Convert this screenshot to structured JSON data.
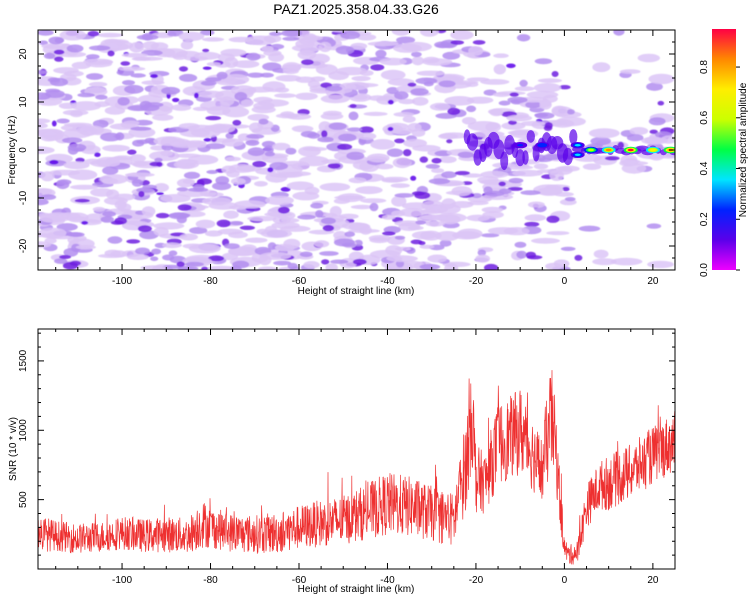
{
  "figure_title": "PAZ1.2025.358.04.33.G26",
  "colors": {
    "line": "#ee3030",
    "frame": "#000000",
    "speckle_light": "#dcc6f7",
    "speckle_mid": "#b38ef0",
    "speckle_dark": "#6f1fe0",
    "speckle_core": "#5a00ea"
  },
  "colorbar": {
    "label": "Normalized spectral amplitude",
    "ticks": [
      "0.0",
      "0.2",
      "0.4",
      "0.6",
      "0.8"
    ],
    "tick_values": [
      0.0,
      0.2,
      0.4,
      0.6,
      0.8
    ],
    "range": [
      0,
      0.95
    ],
    "colormap": [
      "#ee00ff",
      "#5a00ea",
      "#0022ff",
      "#00e5ff",
      "#00ff44",
      "#ccff00",
      "#ffee00",
      "#ff8800",
      "#ff0044"
    ]
  },
  "chart_data": [
    {
      "type": "heatmap",
      "title": "PAZ1.2025.358.04.33.G26",
      "xlabel": "Height of straight line (km)",
      "ylabel": "Frequency (Hz)",
      "xlim": [
        -119,
        25
      ],
      "ylim": [
        -25,
        25
      ],
      "xticks": [
        -100,
        -80,
        -60,
        -40,
        -20,
        0,
        20
      ],
      "yticks": [
        -20,
        -10,
        0,
        10,
        20
      ],
      "xtick_labels": [
        "-100",
        "-80",
        "-60",
        "-40",
        "-20",
        "0",
        "20"
      ],
      "ytick_labels": [
        "-20",
        "-10",
        "0",
        "10",
        "20"
      ],
      "description_points": [
        {
          "x": 6,
          "y": 0,
          "amplitude": 0.55
        },
        {
          "x": 10,
          "y": 0,
          "amplitude": 0.8
        },
        {
          "x": 15,
          "y": 0,
          "amplitude": 0.9
        },
        {
          "x": 20,
          "y": 0,
          "amplitude": 0.75
        },
        {
          "x": 24,
          "y": 0,
          "amplitude": 0.85
        },
        {
          "x": 3,
          "y": 1,
          "amplitude": 0.35
        },
        {
          "x": 3,
          "y": -1,
          "amplitude": 0.3
        },
        {
          "x": -5,
          "y": 1,
          "amplitude": 0.25
        },
        {
          "x": -10,
          "y": 1,
          "amplitude": 0.2
        }
      ]
    },
    {
      "type": "line",
      "xlabel": "Height of straight line (km)",
      "ylabel": "SNR (10 * v/v)",
      "xlim": [
        -119,
        25
      ],
      "ylim": [
        0,
        1730
      ],
      "xticks": [
        -100,
        -80,
        -60,
        -40,
        -20,
        0,
        20
      ],
      "yticks": [
        500,
        1000,
        1500
      ],
      "xtick_labels": [
        "-100",
        "-80",
        "-60",
        "-40",
        "-20",
        "0",
        "20"
      ],
      "ytick_labels": [
        "500",
        "1000",
        "1500"
      ],
      "series": [
        {
          "name": "SNR",
          "x": [
            -119,
            -115,
            -110,
            -105,
            -100,
            -95,
            -90,
            -85,
            -82,
            -80,
            -75,
            -70,
            -65,
            -60,
            -55,
            -50,
            -45,
            -40,
            -35,
            -30,
            -25,
            -22,
            -21,
            -20,
            -18,
            -15,
            -12,
            -10,
            -8,
            -5,
            -3,
            -2,
            -1,
            0,
            1,
            3,
            5,
            8,
            10,
            15,
            20,
            25
          ],
          "mean": [
            260,
            240,
            220,
            230,
            260,
            240,
            250,
            240,
            330,
            300,
            260,
            250,
            260,
            300,
            330,
            350,
            410,
            470,
            450,
            400,
            350,
            800,
            1200,
            650,
            620,
            900,
            950,
            1000,
            880,
            700,
            1100,
            900,
            500,
            150,
            100,
            120,
            450,
            600,
            620,
            700,
            820,
            920
          ],
          "amp": [
            140,
            110,
            110,
            110,
            120,
            120,
            130,
            130,
            180,
            150,
            140,
            140,
            150,
            160,
            170,
            180,
            200,
            230,
            220,
            200,
            200,
            350,
            450,
            250,
            220,
            300,
            300,
            320,
            280,
            250,
            400,
            300,
            200,
            80,
            70,
            90,
            160,
            180,
            200,
            200,
            210,
            220
          ]
        }
      ]
    }
  ]
}
